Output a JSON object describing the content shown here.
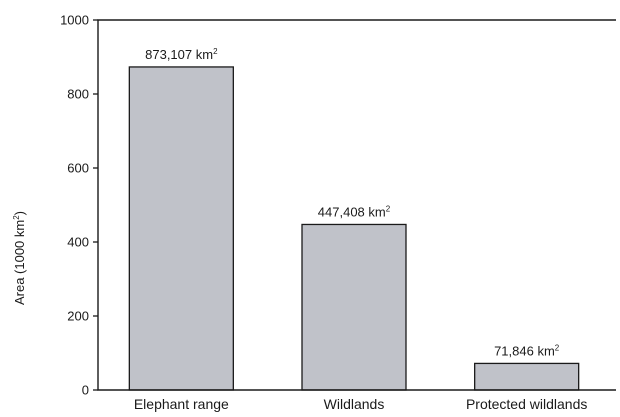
{
  "chart_data": {
    "type": "bar",
    "categories": [
      "Elephant range",
      "Wildlands",
      "Protected wildlands"
    ],
    "values": [
      873.107,
      447.408,
      71.846
    ],
    "data_labels": [
      {
        "text": "873,107 km",
        "sup": "2"
      },
      {
        "text": "447,408 km",
        "sup": "2"
      },
      {
        "text": "71,846 km",
        "sup": "2"
      }
    ],
    "title": "",
    "xlabel": "",
    "ylabel": {
      "text": "Area (1000 km",
      "sup": "2",
      "close": ")"
    },
    "ylim": [
      0,
      1000
    ],
    "yticks": [
      "0",
      "200",
      "400",
      "600",
      "800",
      "1000"
    ],
    "ytick_values": [
      0,
      200,
      400,
      600,
      800,
      1000
    ],
    "grid": false,
    "bar_color": "#c0c2c9",
    "edge_color": "#1a1a1a"
  }
}
